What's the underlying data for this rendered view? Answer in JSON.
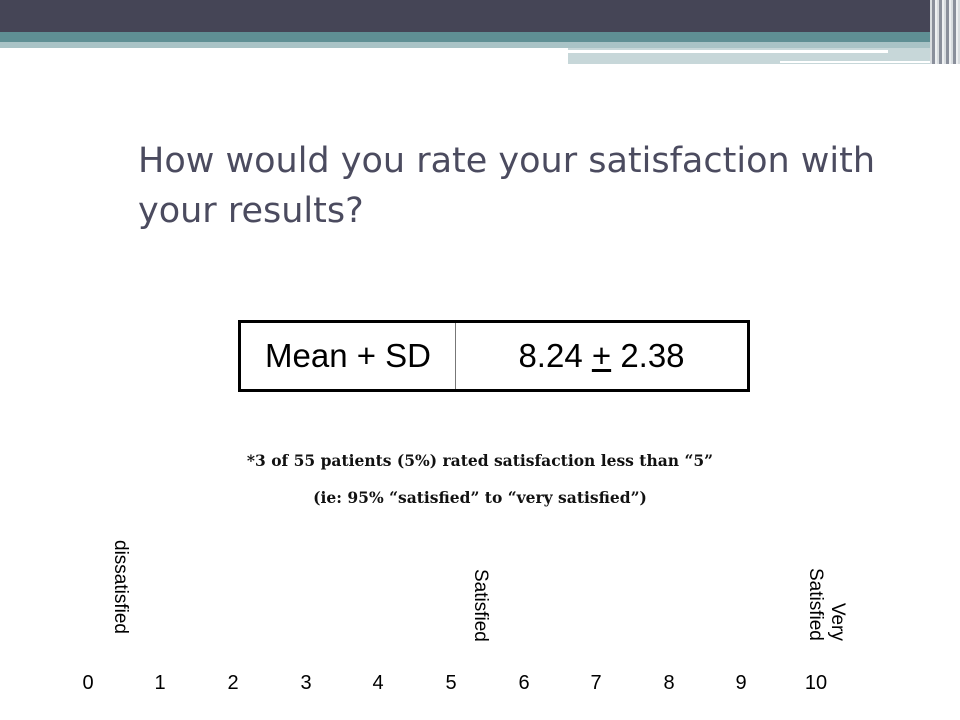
{
  "slide": {
    "title": "How would you rate your satisfaction with your results?",
    "stat_table": {
      "label": "Mean + SD",
      "value_mean": "8.24",
      "value_pm": "+",
      "value_sd": "2.38"
    },
    "notes": [
      "*3 of 55 patients (5%) rated satisfaction less than “5”",
      "(ie: 95% “satisfied” to “very satisfied”)"
    ],
    "scale": {
      "ticks": [
        "0",
        "1",
        "2",
        "3",
        "4",
        "5",
        "6",
        "7",
        "8",
        "9",
        "10"
      ],
      "label_low": "dissatisfied",
      "label_mid": "Satisfied",
      "label_high_line1": "Very",
      "label_high_line2": "Satisfied"
    }
  },
  "colors": {
    "title": "#4b4b5f",
    "header_dark": "#454556",
    "header_teal": "#5f8f94"
  }
}
